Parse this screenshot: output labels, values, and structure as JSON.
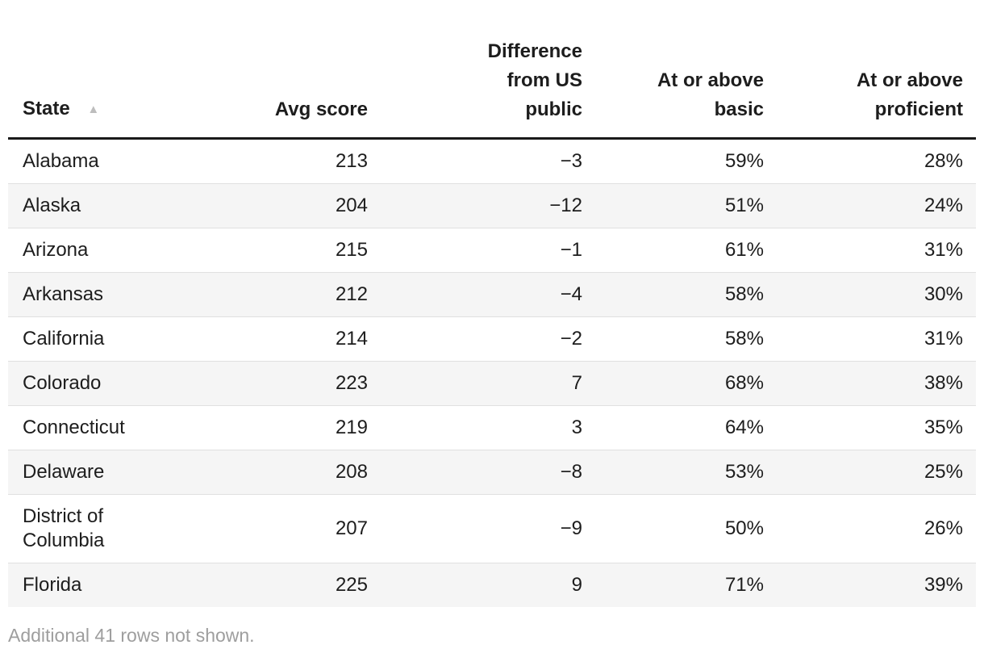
{
  "icons": {
    "sort_ascending": "▲"
  },
  "colors": {
    "background": "#ffffff",
    "text": "#1d1d1d",
    "header_rule": "#1a1a1a",
    "row_stripe": "#f5f5f5",
    "row_divider": "#e0e0e0",
    "sort_icon": "#bdbdbd",
    "note_text": "#9e9e9e"
  },
  "chart_data": {
    "type": "table",
    "sort": {
      "column": "State",
      "direction": "ascending"
    },
    "columns": [
      "State",
      "Avg score",
      "Difference from US public",
      "At or above basic",
      "At or above proficient"
    ],
    "rows": [
      [
        "Alabama",
        "213",
        "−3",
        "59%",
        "28%"
      ],
      [
        "Alaska",
        "204",
        "−12",
        "51%",
        "24%"
      ],
      [
        "Arizona",
        "215",
        "−1",
        "61%",
        "31%"
      ],
      [
        "Arkansas",
        "212",
        "−4",
        "58%",
        "30%"
      ],
      [
        "California",
        "214",
        "−2",
        "58%",
        "31%"
      ],
      [
        "Colorado",
        "223",
        "7",
        "68%",
        "38%"
      ],
      [
        "Connecticut",
        "219",
        "3",
        "64%",
        "35%"
      ],
      [
        "Delaware",
        "208",
        "−8",
        "53%",
        "25%"
      ],
      [
        "District of Columbia",
        "207",
        "−9",
        "50%",
        "26%"
      ],
      [
        "Florida",
        "225",
        "9",
        "71%",
        "39%"
      ]
    ],
    "note": "Additional 41 rows not shown."
  }
}
